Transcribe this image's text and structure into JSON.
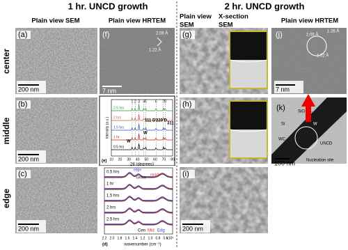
{
  "header": {
    "group_1hr": "1 hr. UNCD growth",
    "group_2hr": "2 hr. UNCD growth"
  },
  "columns": {
    "sem_1hr": "Plain view SEM",
    "hrtem_1hr": "Plain view HRTEM",
    "sem_2hr": [
      "Plain view",
      "SEM"
    ],
    "xsem_2hr": [
      "X-section",
      "SEM"
    ],
    "hrtem_2hr": "Plain view HRTEM"
  },
  "rows": [
    "center",
    "middle",
    "edge"
  ],
  "panels": {
    "a": {
      "label": "(a)",
      "scale": "200 nm"
    },
    "b": {
      "label": "(b)",
      "scale": "200 nm"
    },
    "c": {
      "label": "(c)",
      "scale": "200 nm"
    },
    "f": {
      "label": "(f)",
      "spacings": [
        "2.06 Å",
        "1.22 Å"
      ],
      "scale": "7 nm"
    },
    "g": {
      "label": "(g)"
    },
    "h": {
      "label": "(h)"
    },
    "i": {
      "label": "(i)",
      "scale": "200 nm"
    },
    "j": {
      "label": "(j)",
      "spacings": [
        "2.05 Å",
        "1.26 Å",
        "1.02 Å"
      ],
      "scale": "7 nm"
    },
    "k": {
      "label": "(k)",
      "annotations": [
        "SiO",
        "2",
        "W",
        "Si",
        "WC",
        "UNCD",
        "Nucleation site"
      ],
      "scale": "100 nm"
    },
    "e": {
      "label": "(e)",
      "series_labels": [
        "2.5 hrs",
        "2 hrs",
        "1.5 hrs",
        "1 hr",
        "0.5 hrs"
      ],
      "peak_numbers": [
        "1",
        "2",
        "3",
        "4",
        "5",
        "6",
        "7",
        "8"
      ],
      "peak_labels": [
        "W",
        "W",
        "111 D",
        "220 D",
        "311"
      ],
      "y_label": "Intensity (a.u.)",
      "x_label": "2θ (degrees)",
      "x_ticks": [
        "10",
        "20",
        "30",
        "40",
        "50",
        "60",
        "70",
        "80"
      ]
    },
    "d": {
      "label": "(d)",
      "series_labels": [
        "0.5 hrs",
        "1 hr",
        "1.5 hrs",
        "2 hrs",
        "2.5 hrs"
      ],
      "position_labels": [
        "edge",
        "center",
        "middle"
      ],
      "legend": [
        "Cen",
        "Mid",
        "Edg"
      ],
      "x_ticks": [
        "2.2",
        "2.0",
        "1.8",
        "1.6",
        "1.4",
        "1.2",
        "1.0",
        "0.8",
        "0.6"
      ],
      "x_multiplier": "x10³",
      "x_label": "wavenumber (cm⁻¹)"
    }
  }
}
